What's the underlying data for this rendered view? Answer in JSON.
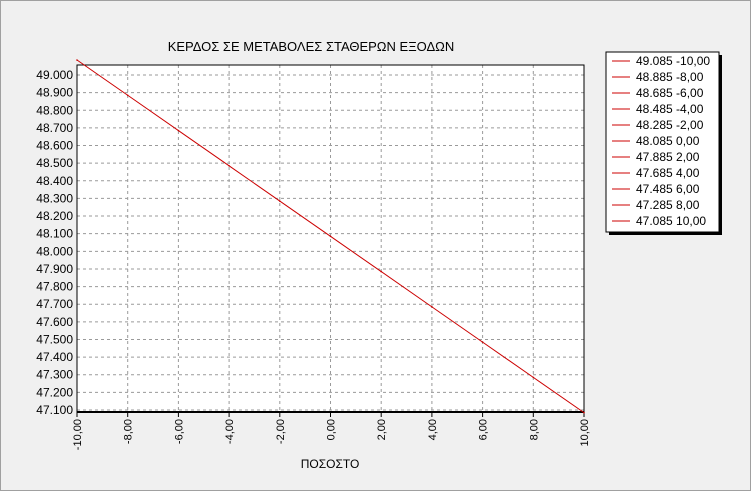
{
  "chart_data": {
    "type": "line",
    "title": "ΚΕΡΔΟΣ ΣΕ ΜΕΤΑΒΟΛΕΣ ΣΤΑΘΕΡΩΝ ΕΞΟΔΩΝ",
    "xlabel": "ΠΟΣΟΣΤΟ",
    "ylabel": "",
    "xlim": [
      -10,
      10
    ],
    "ylim": [
      47.1,
      49.0
    ],
    "grid": true,
    "legend_position": "right",
    "x_tick_labels": [
      "-10,00",
      "-8,00",
      "-6,00",
      "-4,00",
      "-2,00",
      "0,00",
      "2,00",
      "4,00",
      "6,00",
      "8,00",
      "10,00"
    ],
    "y_tick_labels": [
      "49.000",
      "48.900",
      "48.800",
      "48.700",
      "48.600",
      "48.500",
      "48.400",
      "48.300",
      "48.200",
      "48.100",
      "48.000",
      "47.900",
      "47.800",
      "47.700",
      "47.600",
      "47.500",
      "47.400",
      "47.300",
      "47.200",
      "47.100"
    ],
    "series": [
      {
        "color": "#cc0000",
        "x": [
          -10,
          -8,
          -6,
          -4,
          -2,
          0,
          2,
          4,
          6,
          8,
          10
        ],
        "y": [
          49.085,
          48.885,
          48.685,
          48.485,
          48.285,
          48.085,
          47.885,
          47.685,
          47.485,
          47.285,
          47.085
        ]
      }
    ],
    "legend_entries": [
      "49.085 -10,00",
      "48.885 -8,00",
      "48.685 -6,00",
      "48.485 -4,00",
      "48.285 -2,00",
      "48.085 0,00",
      "47.885 2,00",
      "47.685 4,00",
      "47.485 6,00",
      "47.285 8,00",
      "47.085 10,00"
    ]
  }
}
